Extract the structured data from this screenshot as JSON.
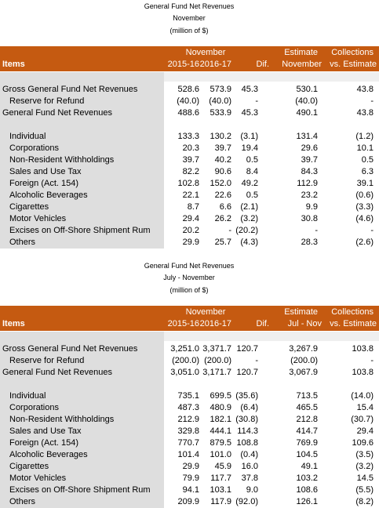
{
  "sections": [
    {
      "title": [
        "General Fund Net Revenues",
        "November",
        "(million of $)"
      ],
      "header": {
        "group": "November",
        "items": "Items",
        "columns": [
          "2015-16",
          "2016-17",
          "Dif."
        ],
        "estimate": [
          "Estimate",
          "November"
        ],
        "collections": [
          "Collections",
          "vs. Estimate"
        ]
      },
      "summary_rows": [
        [
          "Gross General Fund Net Revenues",
          "528.6",
          "573.9",
          "45.3",
          "530.1",
          "43.8"
        ],
        [
          "Reserve for Refund",
          "(40.0)",
          "(40.0)",
          "-",
          "(40.0)",
          "-"
        ],
        [
          "General Fund Net Revenues",
          "488.6",
          "533.9",
          "45.3",
          "490.1",
          "43.8"
        ]
      ],
      "detail_rows": [
        [
          "Individual",
          "133.3",
          "130.2",
          "(3.1)",
          "131.4",
          "(1.2)"
        ],
        [
          "Corporations",
          "20.3",
          "39.7",
          "19.4",
          "29.6",
          "10.1"
        ],
        [
          "Non-Resident Withholdings",
          "39.7",
          "40.2",
          "0.5",
          "39.7",
          "0.5"
        ],
        [
          "Sales and Use Tax",
          "82.2",
          "90.6",
          "8.4",
          "84.3",
          "6.3"
        ],
        [
          "Foreign (Act. 154)",
          "102.8",
          "152.0",
          "49.2",
          "112.9",
          "39.1"
        ],
        [
          "Alcoholic Beverages",
          "22.1",
          "22.6",
          "0.5",
          "23.2",
          "(0.6)"
        ],
        [
          "Cigarettes",
          "8.7",
          "6.6",
          "(2.1)",
          "9.9",
          "(3.3)"
        ],
        [
          "Motor Vehicles",
          "29.4",
          "26.2",
          "(3.2)",
          "30.8",
          "(4.6)"
        ],
        [
          "Excises on Off-Shore Shipment Rum",
          "20.2",
          "-",
          "(20.2)",
          "-",
          "-"
        ],
        [
          "Others",
          "29.9",
          "25.7",
          "(4.3)",
          "28.3",
          "(2.6)"
        ]
      ]
    },
    {
      "title": [
        "General Fund Net Revenues",
        "July - November",
        "(million of $)"
      ],
      "header": {
        "group": "November",
        "items": "Items",
        "columns": [
          "2015-16",
          "2016-17",
          "Dif."
        ],
        "estimate": [
          "Estimate",
          "Jul - Nov"
        ],
        "collections": [
          "Collections",
          "vs. Estimate"
        ]
      },
      "summary_rows": [
        [
          "Gross General Fund Net Revenues",
          "3,251.0",
          "3,371.7",
          "120.7",
          "3,267.9",
          "103.8"
        ],
        [
          "Reserve for Refund",
          "(200.0)",
          "(200.0)",
          "-",
          "(200.0)",
          "-"
        ],
        [
          "General Fund Net Revenues",
          "3,051.0",
          "3,171.7",
          "120.7",
          "3,067.9",
          "103.8"
        ]
      ],
      "detail_rows": [
        [
          "Individual",
          "735.1",
          "699.5",
          "(35.6)",
          "713.5",
          "(14.0)"
        ],
        [
          "Corporations",
          "487.3",
          "480.9",
          "(6.4)",
          "465.5",
          "15.4"
        ],
        [
          "Non-Resident Withholdings",
          "212.9",
          "182.1",
          "(30.8)",
          "212.8",
          "(30.7)"
        ],
        [
          "Sales and Use Tax",
          "329.8",
          "444.1",
          "114.3",
          "414.7",
          "29.4"
        ],
        [
          "Foreign (Act. 154)",
          "770.7",
          "879.5",
          "108.8",
          "769.9",
          "109.6"
        ],
        [
          "Alcoholic Beverages",
          "101.4",
          "101.0",
          "(0.4)",
          "104.5",
          "(3.5)"
        ],
        [
          "Cigarettes",
          "29.9",
          "45.9",
          "16.0",
          "49.1",
          "(3.2)"
        ],
        [
          "Motor Vehicles",
          "79.9",
          "117.7",
          "37.8",
          "103.2",
          "14.5"
        ],
        [
          "Excises on Off-Shore Shipment Rum",
          "94.1",
          "103.1",
          "9.0",
          "108.6",
          "(5.5)"
        ],
        [
          "Others",
          "209.9",
          "117.9",
          "(92.0)",
          "126.1",
          "(8.2)"
        ]
      ]
    }
  ]
}
